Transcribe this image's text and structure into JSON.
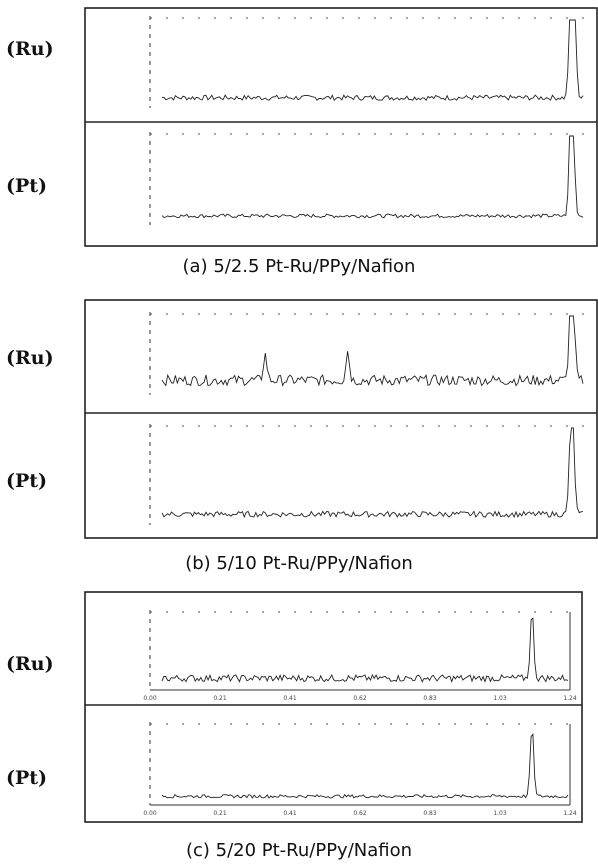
{
  "panels": [
    {
      "caption": "(a) 5/2.5 Pt-Ru/PPy/Nafion",
      "traces": [
        {
          "label": "(Ru)",
          "peak_positions": [
            0.99,
            0.992,
            0.995,
            0.998,
            0.999
          ],
          "peak_heights": [
            0.55,
            0.95,
            0.7,
            0.9,
            0.75
          ],
          "noise_level": 0.07,
          "tick_labels": []
        },
        {
          "label": "(Pt)",
          "peak_positions": [
            0.99,
            0.993,
            0.997
          ],
          "peak_heights": [
            0.5,
            0.95,
            0.6
          ],
          "noise_level": 0.05,
          "tick_labels": []
        }
      ]
    },
    {
      "caption": "(b) 5/10 Pt-Ru/PPy/Nafion",
      "traces": [
        {
          "label": "(Ru)",
          "peak_positions": [
            0.25,
            0.45,
            0.99,
            0.993,
            0.997
          ],
          "peak_heights": [
            0.35,
            0.4,
            0.6,
            0.9,
            0.75
          ],
          "noise_level": 0.16,
          "tick_labels": []
        },
        {
          "label": "(Pt)",
          "peak_positions": [
            0.99,
            0.993,
            0.997
          ],
          "peak_heights": [
            0.45,
            0.6,
            0.5
          ],
          "noise_level": 0.07,
          "tick_labels": []
        }
      ]
    },
    {
      "caption": "(c) 5/20 Pt-Ru/PPy/Nafion",
      "traces": [
        {
          "label": "(Ru)",
          "peak_positions": [
            0.93
          ],
          "peak_heights": [
            0.95
          ],
          "noise_level": 0.11,
          "tick_labels": [
            "0.00",
            "0.21",
            "0.41",
            "0.62",
            "0.83",
            "1.03",
            "1.24"
          ]
        },
        {
          "label": "(Pt)",
          "peak_positions": [
            0.93
          ],
          "peak_heights": [
            0.95
          ],
          "noise_level": 0.05,
          "tick_labels": [
            "0.00",
            "0.21",
            "0.41",
            "0.62",
            "0.83",
            "1.03",
            "1.24"
          ]
        }
      ]
    }
  ],
  "chart_data": [
    {
      "type": "line",
      "title": "(a) 5/2.5 Pt-Ru/PPy/Nafion",
      "series": [
        {
          "name": "(Ru)",
          "peaks_x": [
            0.99,
            0.992,
            0.995,
            0.998,
            0.999
          ]
        },
        {
          "name": "(Pt)",
          "peaks_x": [
            0.99,
            0.993,
            0.997
          ]
        }
      ]
    },
    {
      "type": "line",
      "title": "(b) 5/10 Pt-Ru/PPy/Nafion",
      "series": [
        {
          "name": "(Ru)",
          "peaks_x": [
            0.25,
            0.45,
            0.99,
            0.993,
            0.997
          ]
        },
        {
          "name": "(Pt)",
          "peaks_x": [
            0.99,
            0.993,
            0.997
          ]
        }
      ]
    },
    {
      "type": "line",
      "title": "(c) 5/20 Pt-Ru/PPy/Nafion",
      "x_ticks": [
        "0.00",
        "0.21",
        "0.41",
        "0.62",
        "0.83",
        "1.03",
        "1.24"
      ],
      "series": [
        {
          "name": "(Ru)",
          "peaks_x": [
            0.93
          ]
        },
        {
          "name": "(Pt)",
          "peaks_x": [
            0.93
          ]
        }
      ]
    }
  ]
}
